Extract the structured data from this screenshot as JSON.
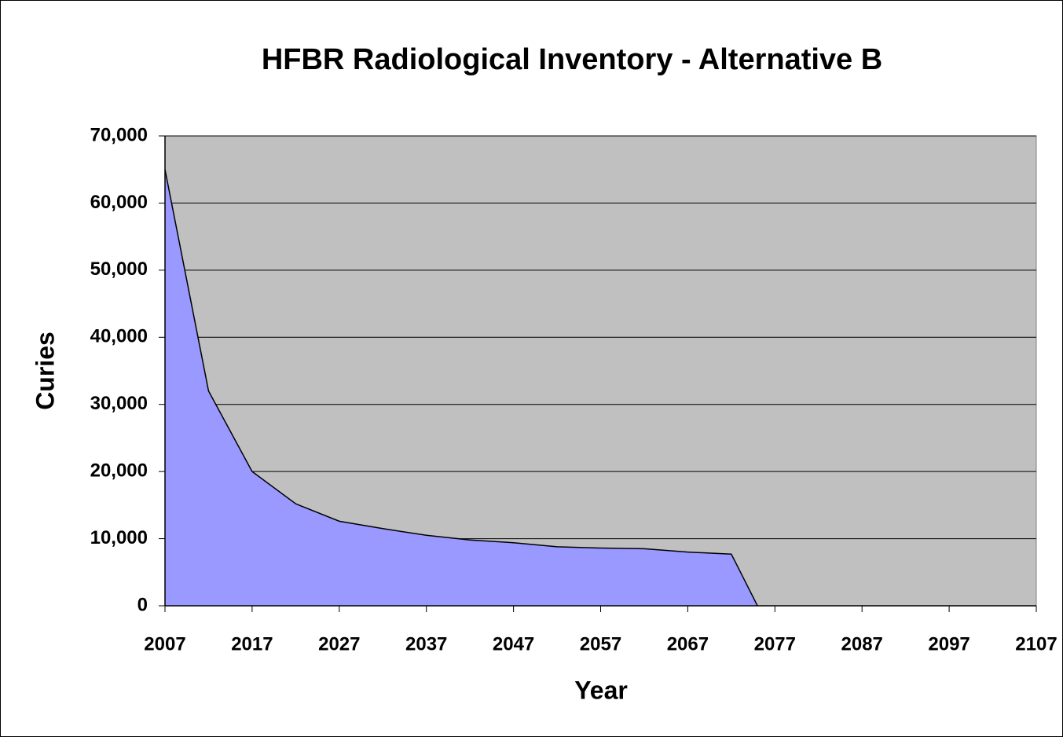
{
  "chart_data": {
    "type": "area",
    "title": "HFBR Radiological Inventory - Alternative B",
    "x_label": "Year",
    "y_label": "Curies",
    "x": [
      2007,
      2012,
      2017,
      2022,
      2027,
      2032,
      2037,
      2042,
      2047,
      2052,
      2057,
      2062,
      2067,
      2072,
      2075
    ],
    "series": [
      {
        "name": "Curies",
        "color": "#9999ff",
        "values": [
          65000,
          32000,
          20000,
          15200,
          12600,
          11500,
          10500,
          9800,
          9400,
          8800,
          8600,
          8500,
          8000,
          7700,
          0
        ]
      }
    ],
    "xlim": [
      2007,
      2107
    ],
    "xticks": [
      2007,
      2017,
      2027,
      2037,
      2047,
      2057,
      2067,
      2077,
      2087,
      2097,
      2107
    ],
    "ylim": [
      0,
      70000
    ],
    "yticks": [
      0,
      {
        "value": 10000,
        "label": "10,000"
      },
      {
        "value": 20000,
        "label": "20,000"
      },
      {
        "value": 30000,
        "label": "30,000"
      },
      {
        "value": 40000,
        "label": "40,000"
      },
      {
        "value": 50000,
        "label": "50,000"
      },
      {
        "value": 60000,
        "label": "60,000"
      },
      {
        "value": 70000,
        "label": "70,000"
      }
    ],
    "grid": true,
    "plot_background": "#c0c0c0"
  }
}
